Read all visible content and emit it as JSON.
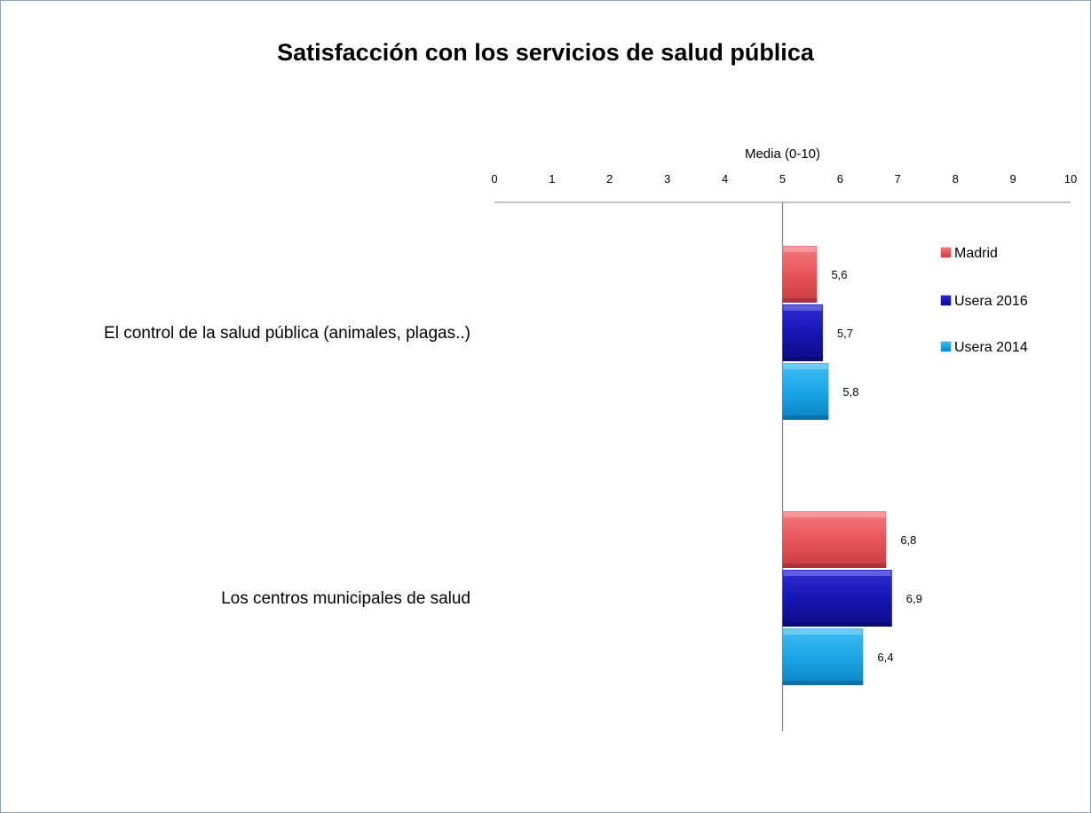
{
  "chart_data": {
    "type": "bar",
    "orientation": "horizontal",
    "title": "Satisfacción con los servicios de salud pública",
    "xlabel": "Media (0-10)",
    "ylabel": "",
    "xlim": [
      0,
      10
    ],
    "x_ticks": [
      "0",
      "1",
      "2",
      "3",
      "4",
      "5",
      "6",
      "7",
      "8",
      "9",
      "10"
    ],
    "categories": [
      "El control de la salud pública (animales, plagas..)",
      "Los  centros municipales de salud"
    ],
    "series": [
      {
        "name": "Madrid",
        "color": "#e8555a",
        "values": [
          5.6,
          6.8
        ],
        "labels": [
          "5,6",
          "6,8"
        ]
      },
      {
        "name": "Usera 2016",
        "color": "#1616b4",
        "values": [
          5.7,
          6.9
        ],
        "labels": [
          "5,7",
          "6,9"
        ]
      },
      {
        "name": "Usera 2014",
        "color": "#1aa6e8",
        "values": [
          5.8,
          6.4
        ],
        "labels": [
          "5,8",
          "6,4"
        ]
      }
    ],
    "baseline": 5,
    "legend_position": "top-right",
    "grid": false
  }
}
